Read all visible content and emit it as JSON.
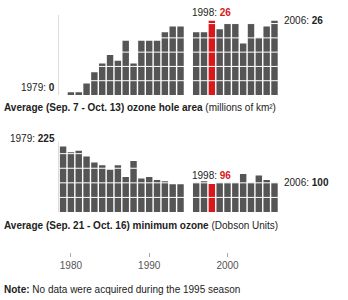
{
  "chart_data": [
    {
      "type": "bar",
      "title": "Average (Sep. 7 - Oct. 13) ozone hole area (millions of km²)",
      "x": [
        1979,
        1980,
        1981,
        1982,
        1983,
        1984,
        1985,
        1986,
        1987,
        1988,
        1989,
        1990,
        1991,
        1992,
        1993,
        1994,
        1995,
        1996,
        1997,
        1998,
        1999,
        2000,
        2001,
        2002,
        2003,
        2004,
        2005,
        2006
      ],
      "values": [
        0,
        1,
        1,
        4,
        8,
        11,
        14,
        12,
        19,
        11,
        19,
        19,
        19,
        22,
        24,
        24,
        null,
        22,
        22,
        26,
        23,
        25,
        25,
        18,
        25,
        20,
        24,
        26
      ],
      "colors": [
        "#555555",
        "#555555",
        "#555555",
        "#555555",
        "#555555",
        "#555555",
        "#555555",
        "#555555",
        "#555555",
        "#555555",
        "#555555",
        "#555555",
        "#555555",
        "#555555",
        "#555555",
        "#555555",
        "#555555",
        "#555555",
        "#555555",
        "#d7191c",
        "#555555",
        "#555555",
        "#555555",
        "#555555",
        "#555555",
        "#555555",
        "#555555",
        "#555555"
      ],
      "ylim": [
        0,
        28
      ],
      "yticks": [
        0,
        5,
        10,
        15,
        20,
        25
      ],
      "grid": true,
      "tick_labels": false,
      "annotations": [
        {
          "x": 1979,
          "text": "1979: 0"
        },
        {
          "x": 1998,
          "text": "1998: 26"
        },
        {
          "x": 2006,
          "text": "2006: 26"
        }
      ]
    },
    {
      "type": "bar",
      "title": "Average (Sep. 21 - Oct. 16) minimum ozone (Dobson Units)",
      "x": [
        1979,
        1980,
        1981,
        1982,
        1983,
        1984,
        1985,
        1986,
        1987,
        1988,
        1989,
        1990,
        1991,
        1992,
        1993,
        1994,
        1995,
        1996,
        1997,
        1998,
        1999,
        2000,
        2001,
        2002,
        2003,
        2004,
        2005,
        2006
      ],
      "values": [
        225,
        205,
        210,
        190,
        170,
        160,
        145,
        160,
        120,
        175,
        115,
        120,
        110,
        105,
        95,
        95,
        null,
        100,
        105,
        96,
        100,
        100,
        100,
        130,
        100,
        125,
        110,
        100
      ],
      "colors": [
        "#555555",
        "#555555",
        "#555555",
        "#555555",
        "#555555",
        "#555555",
        "#555555",
        "#555555",
        "#555555",
        "#555555",
        "#555555",
        "#555555",
        "#555555",
        "#555555",
        "#555555",
        "#555555",
        "#555555",
        "#555555",
        "#555555",
        "#d7191c",
        "#555555",
        "#555555",
        "#555555",
        "#555555",
        "#555555",
        "#555555",
        "#555555",
        "#555555"
      ],
      "xlim": [
        1978.5,
        2006.5
      ],
      "xticks": [
        1980,
        1990,
        2000
      ],
      "ylim": [
        0,
        240
      ],
      "yticks": [
        0,
        50,
        100,
        150,
        200
      ],
      "grid": true,
      "tick_labels": "x",
      "annotations": [
        {
          "x": 1979,
          "text": "1979: 225"
        },
        {
          "x": 1998,
          "text": "1998: 96"
        },
        {
          "x": 2006,
          "text": "2006: 100"
        }
      ]
    }
  ],
  "note": "Note: No data were acquired during the 1995 season"
}
